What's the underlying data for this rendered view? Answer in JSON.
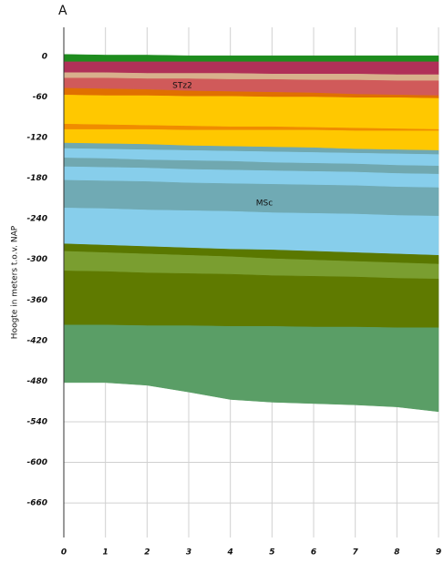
{
  "chart_data": {
    "type": "layers",
    "title": "A",
    "y_label": "Hoogte in meters t.o.v. NAP",
    "x": [
      0,
      1,
      2,
      3,
      4,
      5,
      6,
      7,
      8,
      9
    ],
    "xlim": [
      0,
      9
    ],
    "xticks": [
      0,
      1,
      2,
      3,
      4,
      5,
      6,
      7,
      8,
      9
    ],
    "ylim": [
      -711,
      43
    ],
    "yticks": [
      0,
      -60,
      -120,
      -180,
      -240,
      -300,
      -360,
      -420,
      -480,
      -540,
      -600,
      -660
    ],
    "grid": true,
    "annotations": [
      "STz2",
      "MSc"
    ],
    "surface": [
      3,
      2,
      2,
      1,
      1,
      1,
      1,
      1,
      1,
      1
    ],
    "series": [
      {
        "color": "#1e8c1e",
        "values": [
          -8,
          -8,
          -8,
          -8,
          -8,
          -8,
          -8,
          -8,
          -8,
          -8
        ]
      },
      {
        "color": "#b03058",
        "values": [
          -24,
          -24,
          -25,
          -25,
          -25,
          -26,
          -26,
          -26,
          -27,
          -27
        ]
      },
      {
        "color": "#d8b08c",
        "values": [
          -32,
          -32,
          -33,
          -33,
          -34,
          -34,
          -35,
          -35,
          -36,
          -36
        ]
      },
      {
        "color": "#d05a5a",
        "values": [
          -47,
          -48,
          -49,
          -51,
          -52,
          -53,
          -54,
          -56,
          -57,
          -58
        ]
      },
      {
        "color": "#e07000",
        "values": [
          -57,
          -58,
          -58,
          -59,
          -59,
          -60,
          -60,
          -61,
          -61,
          -62
        ]
      },
      {
        "color": "#ffc800",
        "values": [
          -100,
          -101,
          -102,
          -103,
          -104,
          -104,
          -105,
          -106,
          -107,
          -108
        ]
      },
      {
        "color": "#f08c00",
        "values": [
          -108,
          -108,
          -108,
          -109,
          -109,
          -109,
          -109,
          -110,
          -110,
          -110
        ]
      },
      {
        "color": "#ffc800",
        "values": [
          -128,
          -129,
          -130,
          -132,
          -133,
          -134,
          -135,
          -137,
          -138,
          -139
        ]
      },
      {
        "color": "#70a8b0",
        "values": [
          -136,
          -137,
          -138,
          -139,
          -140,
          -141,
          -142,
          -143,
          -144,
          -145
        ]
      },
      {
        "color": "#87ceeb",
        "values": [
          -150,
          -151,
          -153,
          -154,
          -155,
          -157,
          -158,
          -159,
          -161,
          -162
        ]
      },
      {
        "color": "#70a8b0",
        "values": [
          -163,
          -164,
          -165,
          -167,
          -168,
          -169,
          -170,
          -171,
          -173,
          -174
        ]
      },
      {
        "color": "#87ceeb",
        "values": [
          -183,
          -184,
          -185,
          -187,
          -188,
          -189,
          -190,
          -191,
          -193,
          -194
        ]
      },
      {
        "color": "#70aab4",
        "values": [
          -224,
          -225,
          -227,
          -228,
          -229,
          -231,
          -232,
          -233,
          -235,
          -236
        ]
      },
      {
        "color": "#87ceeb",
        "values": [
          -277,
          -279,
          -281,
          -283,
          -285,
          -286,
          -288,
          -290,
          -292,
          -294
        ]
      },
      {
        "color": "#5a7800",
        "values": [
          -288,
          -290,
          -292,
          -294,
          -296,
          -299,
          -301,
          -303,
          -305,
          -307
        ]
      },
      {
        "color": "#7a9e30",
        "values": [
          -317,
          -318,
          -320,
          -321,
          -322,
          -324,
          -325,
          -326,
          -328,
          -329
        ]
      },
      {
        "color": "#5f7a00",
        "values": [
          -397,
          -397,
          -398,
          -398,
          -399,
          -399,
          -400,
          -400,
          -401,
          -401
        ]
      },
      {
        "color": "#5a9e66",
        "values": [
          -482,
          -482,
          -486,
          -496,
          -507,
          -511,
          -513,
          -515,
          -518,
          -525
        ]
      }
    ]
  }
}
